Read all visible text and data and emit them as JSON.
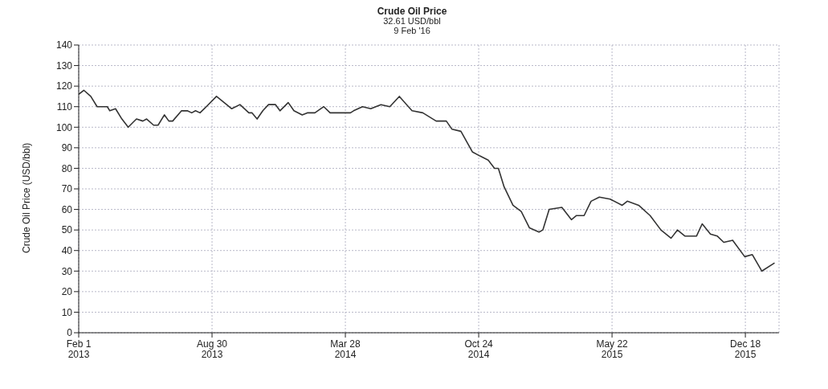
{
  "chart_data": {
    "type": "line",
    "title": "Crude Oil Price",
    "subtitle": "32.61 USD/bbl\n9 Feb '16",
    "ylabel": "Crude Oil Price (USD/bbl)",
    "x": [
      "2013-02-01",
      "2013-02-09",
      "2013-02-20",
      "2013-03-02",
      "2013-03-18",
      "2013-03-22",
      "2013-03-31",
      "2013-04-10",
      "2013-04-20",
      "2013-05-03",
      "2013-05-13",
      "2013-05-19",
      "2013-05-30",
      "2013-06-06",
      "2013-06-16",
      "2013-06-23",
      "2013-06-29",
      "2013-07-13",
      "2013-07-22",
      "2013-07-29",
      "2013-08-04",
      "2013-08-11",
      "2013-08-21",
      "2013-09-06",
      "2013-09-22",
      "2013-09-30",
      "2013-10-13",
      "2013-10-27",
      "2013-11-01",
      "2013-11-09",
      "2013-11-18",
      "2013-11-27",
      "2013-12-08",
      "2013-12-15",
      "2013-12-28",
      "2014-01-06",
      "2014-01-19",
      "2014-01-27",
      "2014-02-08",
      "2014-02-22",
      "2014-03-04",
      "2014-03-13",
      "2014-03-27",
      "2014-04-05",
      "2014-04-10",
      "2014-04-24",
      "2014-05-07",
      "2014-05-23",
      "2014-06-06",
      "2014-06-21",
      "2014-07-11",
      "2014-07-28",
      "2014-08-18",
      "2014-09-03",
      "2014-09-12",
      "2014-09-26",
      "2014-10-14",
      "2014-10-26",
      "2014-11-08",
      "2014-11-18",
      "2014-11-24",
      "2014-12-03",
      "2014-12-17",
      "2014-12-30",
      "2015-01-12",
      "2015-01-27",
      "2015-02-02",
      "2015-02-12",
      "2015-03-04",
      "2015-03-19",
      "2015-03-27",
      "2015-04-08",
      "2015-04-19",
      "2015-05-02",
      "2015-05-19",
      "2015-06-07",
      "2015-06-15",
      "2015-07-03",
      "2015-07-21",
      "2015-08-07",
      "2015-08-23",
      "2015-09-02",
      "2015-09-14",
      "2015-10-02",
      "2015-10-11",
      "2015-10-24",
      "2015-11-04",
      "2015-11-14",
      "2015-11-28",
      "2015-12-17",
      "2015-12-29",
      "2016-01-13",
      "2016-02-02"
    ],
    "series": [
      {
        "color": "#333333",
        "values": [
          116,
          118,
          115,
          110,
          110,
          108,
          109,
          104,
          100,
          104,
          103,
          104,
          101,
          101,
          106,
          103,
          103,
          108,
          108,
          107,
          108,
          107,
          110,
          115,
          111,
          109,
          111,
          107,
          107,
          104,
          108,
          111,
          111,
          108,
          112,
          108,
          106,
          107,
          107,
          110,
          107,
          107,
          107,
          107,
          108,
          110,
          109,
          111,
          110,
          115,
          108,
          107,
          103,
          103,
          99,
          98,
          88,
          86,
          84,
          80,
          80,
          71,
          62,
          59,
          51,
          49,
          50,
          60,
          61,
          55,
          57,
          57,
          64,
          66,
          65,
          62,
          64,
          62,
          57,
          50,
          46,
          50,
          47,
          47,
          53,
          48,
          47,
          44,
          45,
          37,
          38,
          30,
          34
        ]
      }
    ],
    "xlim": [
      "2013-02-01",
      "2016-02-09"
    ],
    "xticks": [
      {
        "value": "2013-02-01",
        "label": "Feb 1\n2013"
      },
      {
        "value": "2013-08-30",
        "label": "Aug 30\n2013"
      },
      {
        "value": "2014-03-28",
        "label": "Mar 28\n2014"
      },
      {
        "value": "2014-10-24",
        "label": "Oct 24\n2014"
      },
      {
        "value": "2015-05-22",
        "label": "May 22\n2015"
      },
      {
        "value": "2015-12-18",
        "label": "Dec 18\n2015"
      }
    ],
    "ylim": [
      0,
      140
    ],
    "yticks": [
      0,
      10,
      20,
      30,
      40,
      50,
      60,
      70,
      80,
      90,
      100,
      110,
      120,
      130,
      140
    ],
    "grid": true,
    "line_style": "solid"
  }
}
